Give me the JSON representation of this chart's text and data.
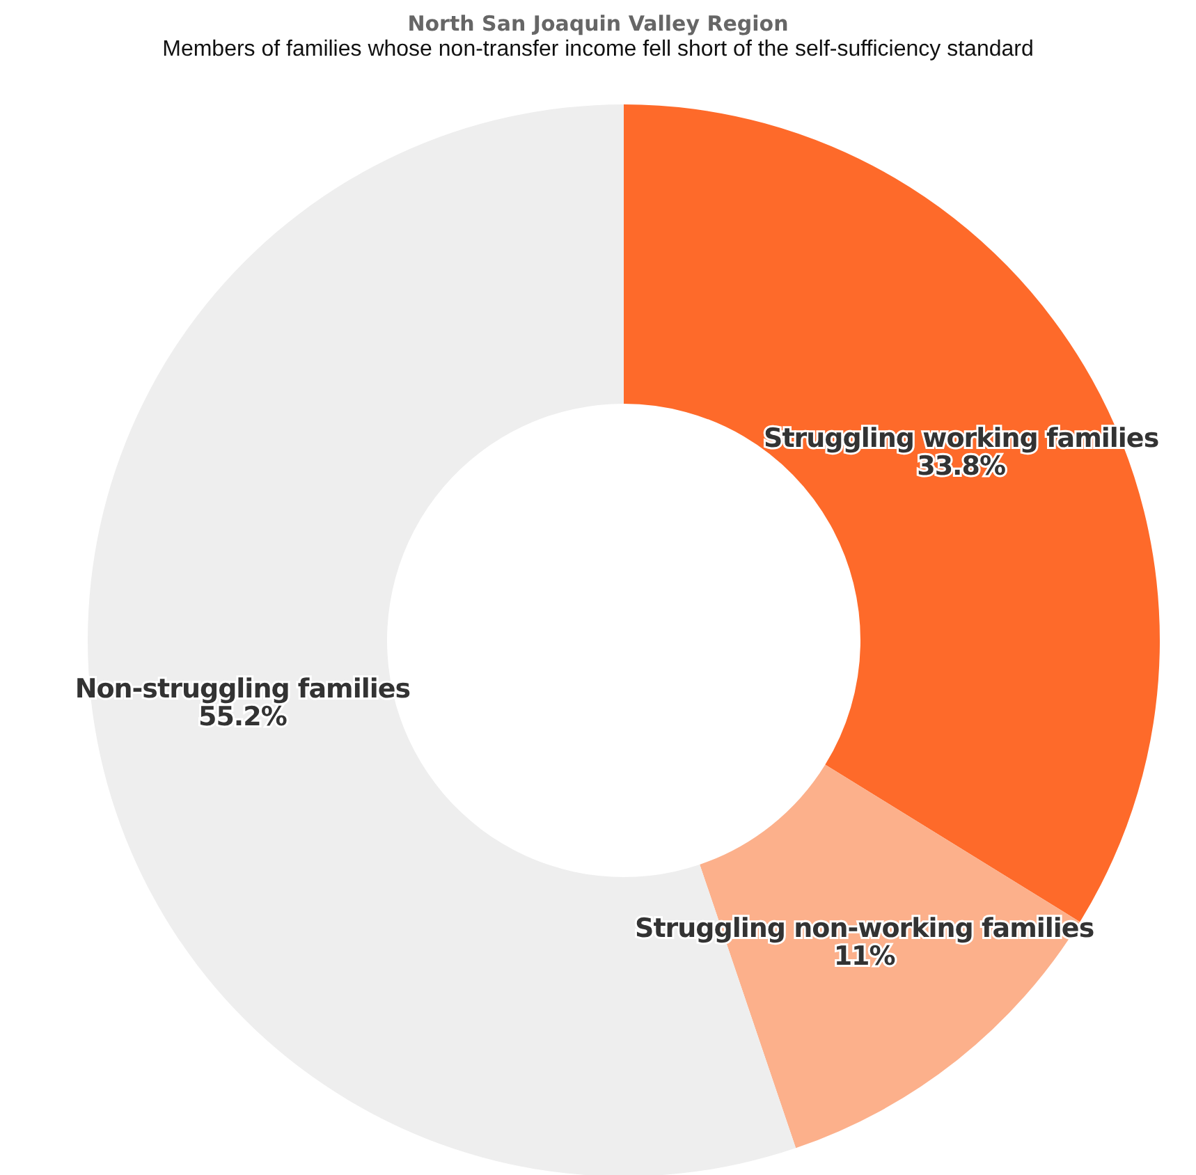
{
  "chart_data": {
    "type": "donut",
    "title": "North San Joaquin Valley Region",
    "subtitle": "Members of families whose non-transfer income fell short of the self-sufficiency standard",
    "categories": [
      "Struggling working families",
      "Struggling non-working families",
      "Non-struggling families"
    ],
    "values": [
      33.8,
      11,
      55.2
    ],
    "colors": [
      "#fe6a2a",
      "#fcb08b",
      "#eeeeee"
    ],
    "value_labels": [
      "33.8%",
      "11%",
      "55.2%"
    ]
  }
}
